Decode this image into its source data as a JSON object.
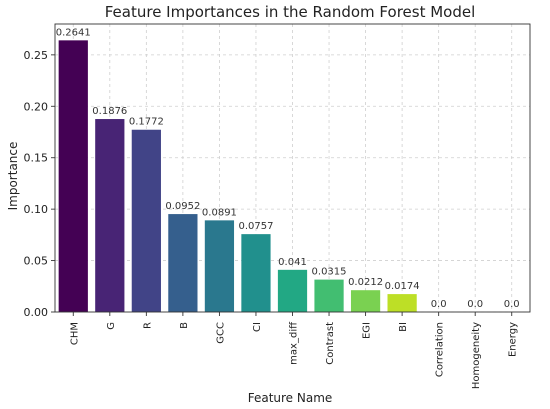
{
  "chart_data": {
    "type": "bar",
    "title": "Feature Importances in the Random Forest Model",
    "xlabel": "Feature Name",
    "ylabel": "Importance",
    "ylim": [
      0,
      0.28
    ],
    "yticks": [
      "0.00",
      "0.05",
      "0.10",
      "0.15",
      "0.20",
      "0.25"
    ],
    "grid": true,
    "categories": [
      "CHM",
      "G",
      "R",
      "B",
      "GCC",
      "CI",
      "max_diff",
      "Contrast",
      "EGI",
      "BI",
      "Correlation",
      "Homogeneity",
      "Energy"
    ],
    "values": [
      0.2641,
      0.1876,
      0.1772,
      0.0952,
      0.0891,
      0.0757,
      0.041,
      0.0315,
      0.0212,
      0.0174,
      0.0,
      0.0,
      0.0
    ],
    "value_labels": [
      "0.2641",
      "0.1876",
      "0.1772",
      "0.0952",
      "0.0891",
      "0.0757",
      "0.041",
      "0.0315",
      "0.0212",
      "0.0174",
      "0.0",
      "0.0",
      "0.0"
    ],
    "colors": [
      "#440154",
      "#482475",
      "#414487",
      "#355f8d",
      "#2a788e",
      "#21908d",
      "#22a884",
      "#42be71",
      "#7ad151",
      "#bddf26",
      "#fde725",
      "#fde725",
      "#fde725"
    ]
  }
}
